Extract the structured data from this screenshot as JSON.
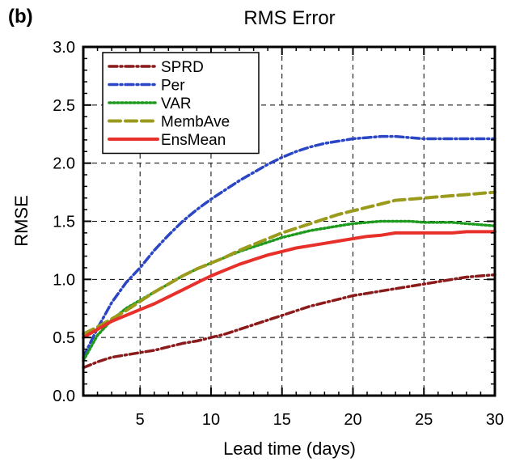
{
  "panel_label": "(b)",
  "chart_data": {
    "type": "line",
    "title": "RMS Error",
    "xlabel": "Lead time (days)",
    "ylabel": "RMSE",
    "xlim": [
      1,
      30
    ],
    "ylim": [
      0,
      3.0
    ],
    "xticks": [
      5,
      10,
      15,
      20,
      25,
      30
    ],
    "xtick_labels": [
      "5",
      "10",
      "15",
      "20",
      "25",
      "30"
    ],
    "yticks": [
      0,
      0.5,
      1.0,
      1.5,
      2.0,
      2.5,
      3.0
    ],
    "ytick_labels": [
      "0.0",
      "0.5",
      "1.0",
      "1.5",
      "2.0",
      "2.5",
      "3.0"
    ],
    "grid": true,
    "legend_position": "top-left",
    "x": [
      1,
      2,
      3,
      4,
      5,
      6,
      7,
      8,
      9,
      10,
      11,
      12,
      13,
      14,
      15,
      16,
      17,
      18,
      19,
      20,
      21,
      22,
      23,
      24,
      25,
      26,
      27,
      28,
      29,
      30
    ],
    "series": [
      {
        "name": "SPRD",
        "color": "#8b1a1a",
        "dash": "dot-dash",
        "values": [
          0.24,
          0.29,
          0.33,
          0.35,
          0.37,
          0.39,
          0.42,
          0.45,
          0.47,
          0.5,
          0.53,
          0.57,
          0.61,
          0.65,
          0.69,
          0.73,
          0.77,
          0.8,
          0.83,
          0.86,
          0.88,
          0.9,
          0.92,
          0.94,
          0.96,
          0.98,
          1.0,
          1.02,
          1.03,
          1.04
        ]
      },
      {
        "name": "Per",
        "color": "#2a46c4",
        "dash": "dot-dash",
        "values": [
          0.33,
          0.58,
          0.8,
          0.97,
          1.1,
          1.25,
          1.38,
          1.5,
          1.6,
          1.69,
          1.77,
          1.85,
          1.92,
          1.99,
          2.05,
          2.1,
          2.14,
          2.17,
          2.19,
          2.21,
          2.22,
          2.23,
          2.23,
          2.22,
          2.21,
          2.21,
          2.21,
          2.21,
          2.21,
          2.21
        ]
      },
      {
        "name": "VAR",
        "color": "#1e9a1e",
        "dash": "dotted",
        "values": [
          0.3,
          0.52,
          0.65,
          0.75,
          0.82,
          0.89,
          0.96,
          1.03,
          1.09,
          1.14,
          1.19,
          1.24,
          1.28,
          1.32,
          1.36,
          1.39,
          1.42,
          1.44,
          1.46,
          1.48,
          1.49,
          1.5,
          1.5,
          1.5,
          1.49,
          1.49,
          1.49,
          1.48,
          1.47,
          1.46
        ]
      },
      {
        "name": "MembAve",
        "color": "#9a9a1c",
        "dash": "dashed",
        "values": [
          0.53,
          0.59,
          0.66,
          0.73,
          0.81,
          0.89,
          0.96,
          1.03,
          1.09,
          1.14,
          1.19,
          1.25,
          1.3,
          1.35,
          1.4,
          1.44,
          1.48,
          1.52,
          1.56,
          1.59,
          1.62,
          1.65,
          1.68,
          1.69,
          1.7,
          1.71,
          1.72,
          1.73,
          1.74,
          1.75
        ]
      },
      {
        "name": "EnsMean",
        "color": "#e8302a",
        "dash": "solid",
        "values": [
          0.5,
          0.57,
          0.64,
          0.69,
          0.74,
          0.79,
          0.85,
          0.91,
          0.97,
          1.03,
          1.08,
          1.13,
          1.17,
          1.21,
          1.24,
          1.27,
          1.29,
          1.31,
          1.33,
          1.35,
          1.37,
          1.38,
          1.4,
          1.4,
          1.4,
          1.4,
          1.4,
          1.41,
          1.41,
          1.41
        ]
      }
    ]
  }
}
